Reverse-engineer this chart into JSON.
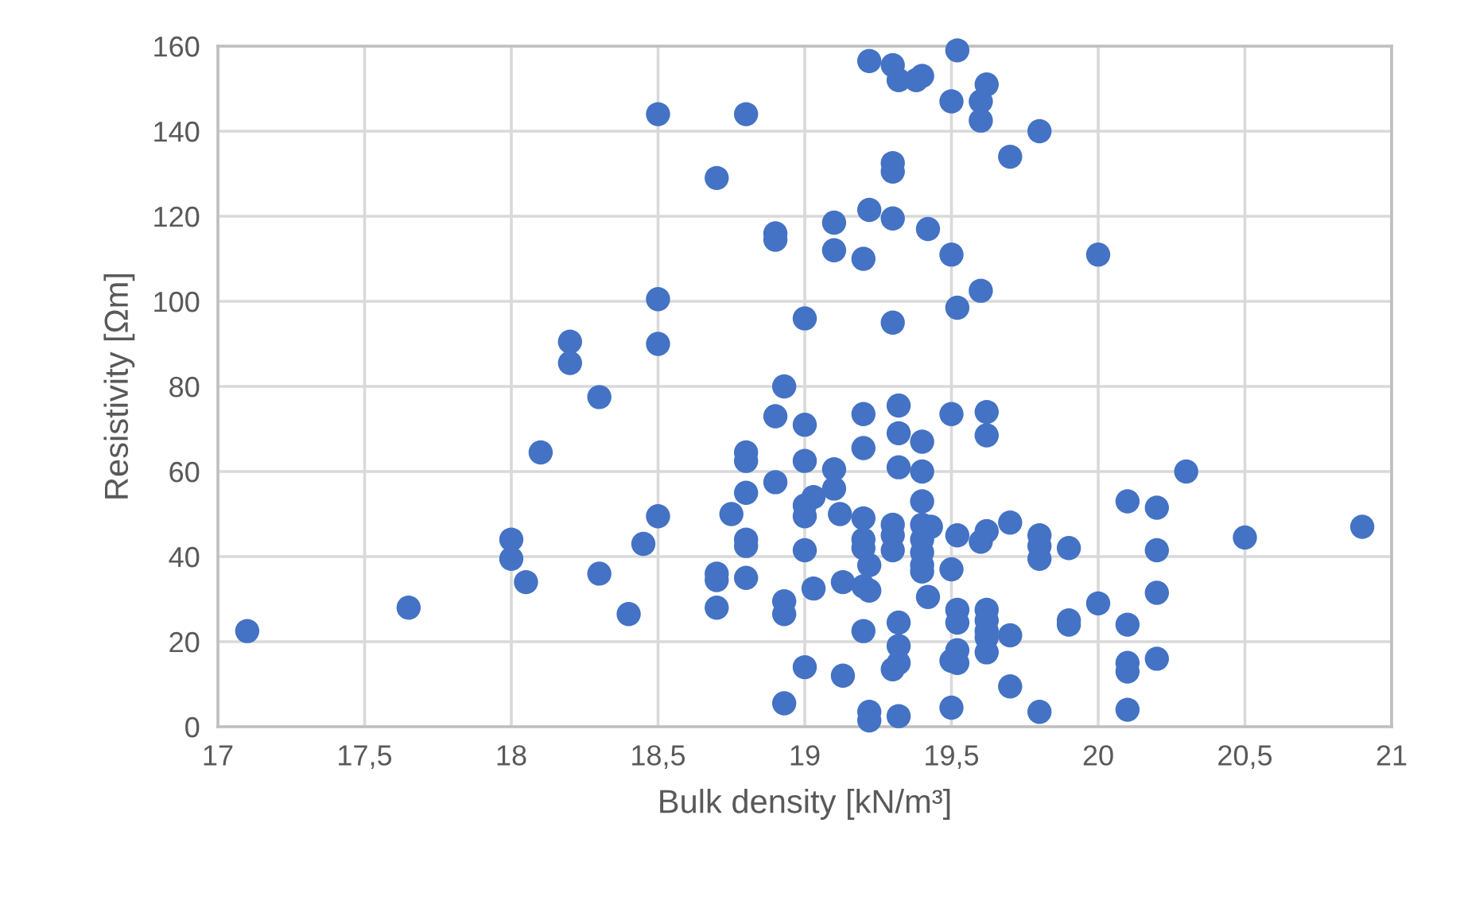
{
  "chart_data": {
    "type": "scatter",
    "xlabel": "Bulk density [kN/m³]",
    "ylabel": "Resistivity [Ωm]",
    "xlim": [
      17,
      21
    ],
    "ylim": [
      0,
      160
    ],
    "xticks": [
      17,
      {
        "value": 17.5,
        "label": "17,5"
      },
      18,
      {
        "value": 18.5,
        "label": "18,5"
      },
      19,
      {
        "value": 19.5,
        "label": "19,5"
      },
      20,
      {
        "value": 20.5,
        "label": "20,5"
      },
      21
    ],
    "yticks": [
      0,
      20,
      40,
      60,
      80,
      100,
      120,
      140,
      160
    ],
    "grid": true,
    "marker": "circle",
    "series": [
      {
        "color": "#4472c4",
        "x": [
          17.1,
          17.65,
          18,
          18,
          18.05,
          18.1,
          18.2,
          18.2,
          18.3,
          18.3,
          18.4,
          18.45,
          18.5,
          18.5,
          18.5,
          18.5,
          18.7,
          18.7,
          18.7,
          18.7,
          18.75,
          18.8,
          18.8,
          18.8,
          18.8,
          18.8,
          18.8,
          18.8,
          18.9,
          18.9,
          18.9,
          18.9,
          18.93,
          18.93,
          18.93,
          18.93,
          19,
          19,
          19,
          19,
          19,
          19,
          19,
          19.03,
          19.03,
          19.1,
          19.1,
          19.1,
          19.1,
          19.12,
          19.13,
          19.13,
          19.2,
          19.2,
          19.2,
          19.2,
          19.2,
          19.2,
          19.2,
          19.2,
          19.22,
          19.22,
          19.22,
          19.22,
          19.22,
          19.22,
          19.3,
          19.3,
          19.3,
          19.3,
          19.3,
          19.3,
          19.3,
          19.3,
          19.3,
          19.32,
          19.32,
          19.32,
          19.32,
          19.32,
          19.32,
          19.32,
          19.32,
          19.38,
          19.4,
          19.4,
          19.4,
          19.4,
          19.4,
          19.4,
          19.4,
          19.4,
          19.4,
          19.42,
          19.42,
          19.43,
          19.5,
          19.5,
          19.5,
          19.5,
          19.5,
          19.5,
          19.52,
          19.52,
          19.52,
          19.52,
          19.52,
          19.52,
          19.52,
          19.6,
          19.6,
          19.6,
          19.6,
          19.62,
          19.62,
          19.62,
          19.62,
          19.62,
          19.62,
          19.62,
          19.62,
          19.62,
          19.7,
          19.7,
          19.7,
          19.7,
          19.8,
          19.8,
          19.8,
          19.8,
          19.8,
          19.9,
          19.9,
          19.9,
          20,
          20,
          20.1,
          20.1,
          20.1,
          20.1,
          20.1,
          20.2,
          20.2,
          20.2,
          20.2,
          20.3,
          20.5,
          20.9
        ],
        "values": [
          22.5,
          28,
          44,
          39.5,
          34,
          64.5,
          90.5,
          85.5,
          77.5,
          36,
          26.5,
          43,
          144,
          100.5,
          90,
          49.5,
          129,
          36,
          34.5,
          28,
          50,
          144,
          64.5,
          62.5,
          55,
          44,
          42.5,
          35,
          116,
          114.5,
          73,
          57.5,
          80,
          29.5,
          26.5,
          5.5,
          96,
          71,
          62.5,
          52,
          49.5,
          41.5,
          14,
          54,
          32.5,
          118.5,
          112,
          60.5,
          56,
          50,
          34,
          12,
          110,
          73.5,
          65.5,
          49,
          44,
          42,
          33,
          22.5,
          156.5,
          121.5,
          38,
          32,
          3.5,
          1.5,
          155.5,
          132.5,
          130.5,
          119.5,
          95,
          47.5,
          45,
          41.5,
          13.5,
          152,
          75.5,
          69,
          61,
          24.5,
          19,
          15,
          2.5,
          152,
          153,
          67,
          60,
          53,
          47.5,
          44,
          41,
          38,
          36.5,
          117,
          30.5,
          47,
          147,
          111,
          73.5,
          37,
          15.5,
          4.5,
          159,
          98.5,
          45,
          27.5,
          24.5,
          18,
          15,
          147,
          142.5,
          102.5,
          43.5,
          151,
          74,
          68.5,
          46,
          27.5,
          25,
          22.5,
          21,
          17.5,
          134,
          48,
          21.5,
          9.5,
          140,
          45,
          42.5,
          39.5,
          3.5,
          42,
          25,
          24,
          111,
          29,
          53,
          24,
          15,
          13,
          4,
          51.5,
          41.5,
          31.5,
          16,
          60,
          44.5,
          47
        ]
      }
    ]
  }
}
